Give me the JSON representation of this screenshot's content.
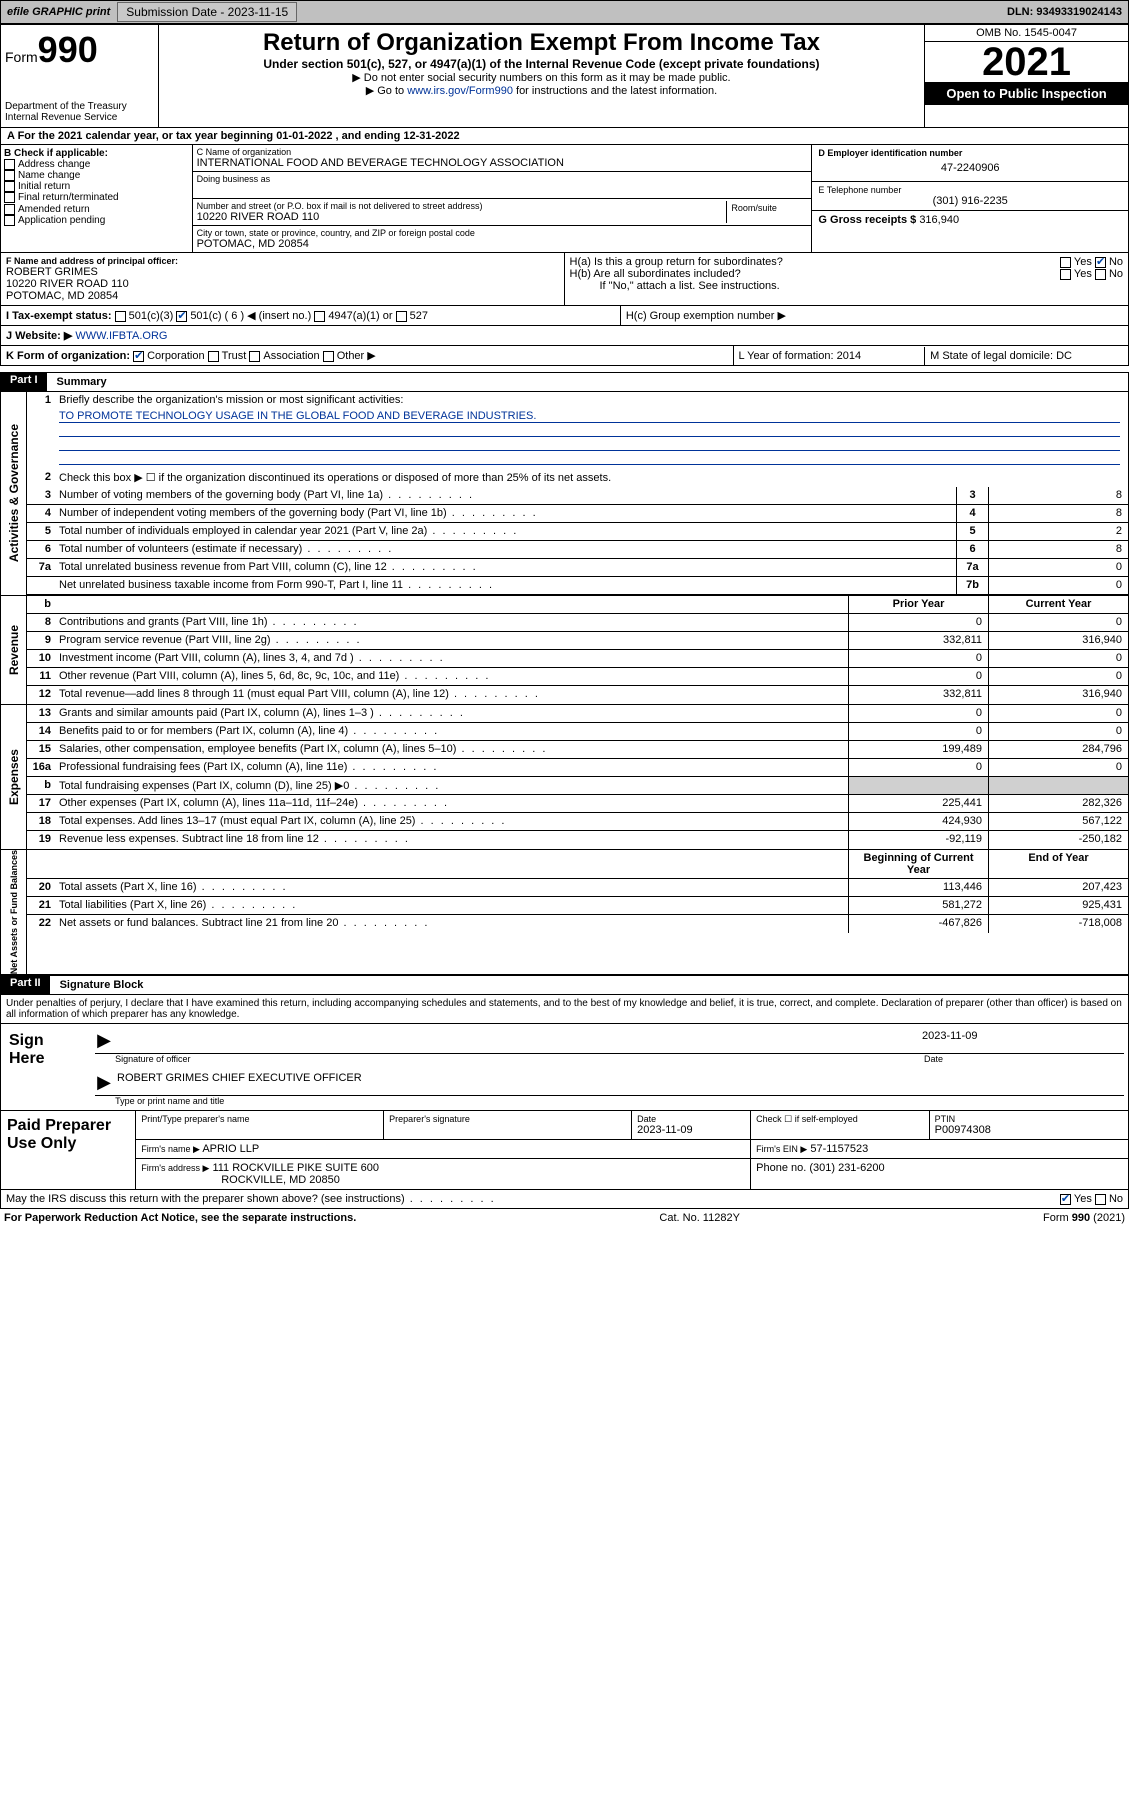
{
  "topbar": {
    "efile": "efile GRAPHIC print",
    "submission_label": "Submission Date - 2023-11-15",
    "dln": "DLN: 93493319024143"
  },
  "header": {
    "form": "Form",
    "formno": "990",
    "dept": "Department of the Treasury Internal Revenue Service",
    "title": "Return of Organization Exempt From Income Tax",
    "sub": "Under section 501(c), 527, or 4947(a)(1) of the Internal Revenue Code (except private foundations)",
    "l1": "▶ Do not enter social security numbers on this form as it may be made public.",
    "l2a": "▶ Go to ",
    "l2b": "www.irs.gov/Form990",
    "l2c": " for instructions and the latest information.",
    "omb": "OMB No. 1545-0047",
    "year": "2021",
    "inspect": "Open to Public Inspection"
  },
  "period": "A For the 2021 calendar year, or tax year beginning 01-01-2022   , and ending 12-31-2022",
  "B": {
    "hdr": "B Check if applicable:",
    "items": [
      "Address change",
      "Name change",
      "Initial return",
      "Final return/terminated",
      "Amended return",
      "Application pending"
    ]
  },
  "C": {
    "name_lbl": "C Name of organization",
    "name": "INTERNATIONAL FOOD AND BEVERAGE TECHNOLOGY ASSOCIATION",
    "dba_lbl": "Doing business as",
    "addr_lbl": "Number and street (or P.O. box if mail is not delivered to street address)",
    "room_lbl": "Room/suite",
    "addr": "10220 RIVER ROAD 110",
    "city_lbl": "City or town, state or province, country, and ZIP or foreign postal code",
    "city": "POTOMAC, MD  20854"
  },
  "D": {
    "lbl": "D Employer identification number",
    "val": "47-2240906"
  },
  "E": {
    "lbl": "E Telephone number",
    "val": "(301) 916-2235"
  },
  "G": {
    "lbl": "G Gross receipts $",
    "val": "316,940"
  },
  "F": {
    "lbl": "F  Name and address of principal officer:",
    "name": "ROBERT GRIMES",
    "addr1": "10220 RIVER ROAD 110",
    "addr2": "POTOMAC, MD  20854"
  },
  "H": {
    "a": "H(a)  Is this a group return for subordinates?",
    "b": "H(b)  Are all subordinates included?",
    "b2": "If \"No,\" attach a list. See instructions.",
    "c": "H(c)  Group exemption number ▶"
  },
  "I": {
    "lbl": "I   Tax-exempt status:",
    "o1": "501(c)(3)",
    "o2": "501(c) ( 6 ) ◀ (insert no.)",
    "o3": "4947(a)(1) or",
    "o4": "527"
  },
  "J": {
    "lbl": "J   Website: ▶",
    "val": " WWW.IFBTA.ORG"
  },
  "K": {
    "lbl": "K Form of organization:",
    "o": [
      "Corporation",
      "Trust",
      "Association",
      "Other ▶"
    ]
  },
  "L": {
    "lbl": "L Year of formation: 2014"
  },
  "M": {
    "lbl": "M State of legal domicile: DC"
  },
  "part1": {
    "num": "Part I",
    "title": "Summary"
  },
  "summary": {
    "l1": "Briefly describe the organization's mission or most significant activities:",
    "l1v": "TO PROMOTE TECHNOLOGY USAGE IN THE GLOBAL FOOD AND BEVERAGE INDUSTRIES.",
    "l2": "Check this box ▶ ☐  if the organization discontinued its operations or disposed of more than 25% of its net assets.",
    "rows_gov": [
      {
        "n": "3",
        "t": "Number of voting members of the governing body (Part VI, line 1a)",
        "b": "3",
        "v": "8"
      },
      {
        "n": "4",
        "t": "Number of independent voting members of the governing body (Part VI, line 1b)",
        "b": "4",
        "v": "8"
      },
      {
        "n": "5",
        "t": "Total number of individuals employed in calendar year 2021 (Part V, line 2a)",
        "b": "5",
        "v": "2"
      },
      {
        "n": "6",
        "t": "Total number of volunteers (estimate if necessary)",
        "b": "6",
        "v": "8"
      },
      {
        "n": "7a",
        "t": "Total unrelated business revenue from Part VIII, column (C), line 12",
        "b": "7a",
        "v": "0"
      },
      {
        "n": "",
        "t": "Net unrelated business taxable income from Form 990-T, Part I, line 11",
        "b": "7b",
        "v": "0"
      }
    ],
    "colhdr": {
      "n": "b",
      "prior": "Prior Year",
      "curr": "Current Year"
    },
    "rev": [
      {
        "n": "8",
        "t": "Contributions and grants (Part VIII, line 1h)",
        "p": "0",
        "c": "0"
      },
      {
        "n": "9",
        "t": "Program service revenue (Part VIII, line 2g)",
        "p": "332,811",
        "c": "316,940"
      },
      {
        "n": "10",
        "t": "Investment income (Part VIII, column (A), lines 3, 4, and 7d )",
        "p": "0",
        "c": "0"
      },
      {
        "n": "11",
        "t": "Other revenue (Part VIII, column (A), lines 5, 6d, 8c, 9c, 10c, and 11e)",
        "p": "0",
        "c": "0"
      },
      {
        "n": "12",
        "t": "Total revenue—add lines 8 through 11 (must equal Part VIII, column (A), line 12)",
        "p": "332,811",
        "c": "316,940"
      }
    ],
    "exp": [
      {
        "n": "13",
        "t": "Grants and similar amounts paid (Part IX, column (A), lines 1–3 )",
        "p": "0",
        "c": "0"
      },
      {
        "n": "14",
        "t": "Benefits paid to or for members (Part IX, column (A), line 4)",
        "p": "0",
        "c": "0"
      },
      {
        "n": "15",
        "t": "Salaries, other compensation, employee benefits (Part IX, column (A), lines 5–10)",
        "p": "199,489",
        "c": "284,796"
      },
      {
        "n": "16a",
        "t": "Professional fundraising fees (Part IX, column (A), line 11e)",
        "p": "0",
        "c": "0"
      },
      {
        "n": "b",
        "t": "Total fundraising expenses (Part IX, column (D), line 25) ▶0",
        "p": "",
        "c": "",
        "gray": true
      },
      {
        "n": "17",
        "t": "Other expenses (Part IX, column (A), lines 11a–11d, 11f–24e)",
        "p": "225,441",
        "c": "282,326"
      },
      {
        "n": "18",
        "t": "Total expenses. Add lines 13–17 (must equal Part IX, column (A), line 25)",
        "p": "424,930",
        "c": "567,122"
      },
      {
        "n": "19",
        "t": "Revenue less expenses. Subtract line 18 from line 12",
        "p": "-92,119",
        "c": "-250,182"
      }
    ],
    "nethdr": {
      "prior": "Beginning of Current Year",
      "curr": "End of Year"
    },
    "net": [
      {
        "n": "20",
        "t": "Total assets (Part X, line 16)",
        "p": "113,446",
        "c": "207,423"
      },
      {
        "n": "21",
        "t": "Total liabilities (Part X, line 26)",
        "p": "581,272",
        "c": "925,431"
      },
      {
        "n": "22",
        "t": "Net assets or fund balances. Subtract line 21 from line 20",
        "p": "-467,826",
        "c": "-718,008"
      }
    ]
  },
  "sides": {
    "gov": "Activities & Governance",
    "rev": "Revenue",
    "exp": "Expenses",
    "net": "Net Assets or Fund Balances"
  },
  "part2": {
    "num": "Part II",
    "title": "Signature Block"
  },
  "penalty": "Under penalties of perjury, I declare that I have examined this return, including accompanying schedules and statements, and to the best of my knowledge and belief, it is true, correct, and complete. Declaration of preparer (other than officer) is based on all information of which preparer has any knowledge.",
  "sign": {
    "here": "Sign Here",
    "date": "2023-11-09",
    "sig_lbl": "Signature of officer",
    "date_lbl": "Date",
    "name": "ROBERT GRIMES  CHIEF EXECUTIVE OFFICER",
    "name_lbl": "Type or print name and title"
  },
  "prep": {
    "title": "Paid Preparer Use Only",
    "r1": {
      "c1": "Print/Type preparer's name",
      "c2": "Preparer's signature",
      "c3": "Date",
      "c3v": "2023-11-09",
      "c4": "Check ☐ if self-employed",
      "c5": "PTIN",
      "c5v": "P00974308"
    },
    "r2": {
      "c1": "Firm's name    ▶",
      "c1v": "APRIO LLP",
      "c2": "Firm's EIN ▶",
      "c2v": "57-1157523"
    },
    "r3": {
      "c1": "Firm's address ▶",
      "c1v": "111 ROCKVILLE PIKE SUITE 600",
      "c2": "Phone no. (301) 231-6200"
    },
    "r3b": "ROCKVILLE, MD  20850"
  },
  "discuss": "May the IRS discuss this return with the preparer shown above? (see instructions)",
  "footer": {
    "l": "For Paperwork Reduction Act Notice, see the separate instructions.",
    "m": "Cat. No. 11282Y",
    "r": "Form 990 (2021)"
  },
  "yesno": {
    "yes": "Yes",
    "no": "No"
  }
}
